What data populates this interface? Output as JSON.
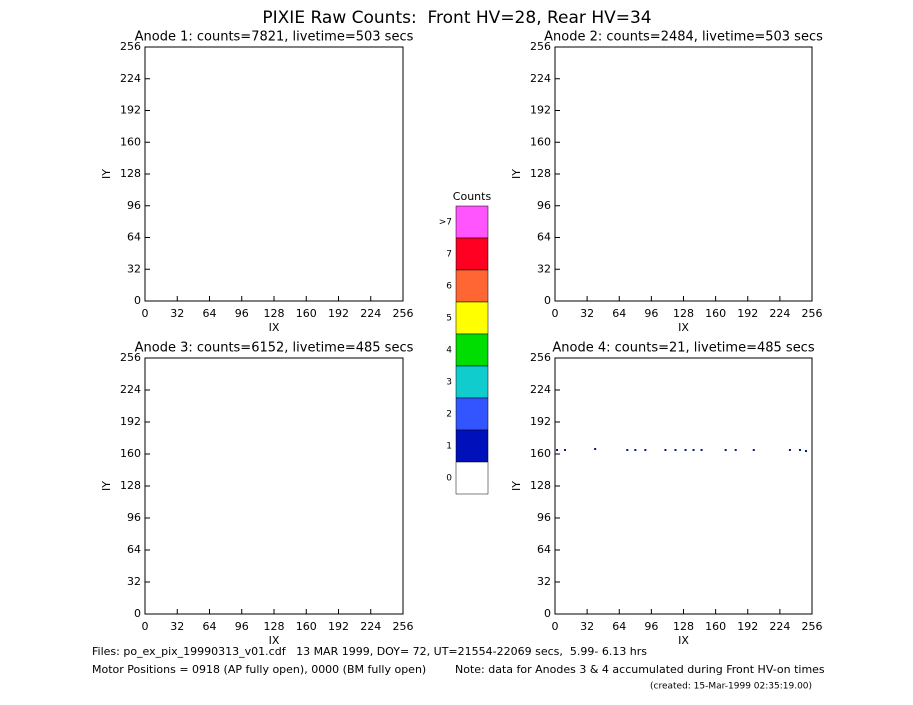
{
  "title": "PIXIE Raw Counts:  Front HV=28, Rear HV=34",
  "chart_data": [
    {
      "type": "scatter",
      "title": "Anode 1: counts=7821, livetime=503 secs",
      "x_label": "IX",
      "y_label": "IY",
      "xlim": [
        0,
        256
      ],
      "ylim": [
        0,
        256
      ],
      "xticks": [
        0,
        32,
        64,
        96,
        128,
        160,
        192,
        224,
        256
      ],
      "yticks": [
        0,
        32,
        64,
        96,
        128,
        160,
        192,
        224,
        256
      ]
    },
    {
      "type": "scatter",
      "title": "Anode 2: counts=2484, livetime=503 secs",
      "x_label": "IX",
      "y_label": "IY",
      "xlim": [
        0,
        256
      ],
      "ylim": [
        0,
        256
      ],
      "xticks": [
        0,
        32,
        64,
        96,
        128,
        160,
        192,
        224,
        256
      ],
      "yticks": [
        0,
        32,
        64,
        96,
        128,
        160,
        192,
        224,
        256
      ]
    },
    {
      "type": "scatter",
      "title": "Anode 3: counts=6152, livetime=485 secs",
      "x_label": "IX",
      "y_label": "IY",
      "xlim": [
        0,
        256
      ],
      "ylim": [
        0,
        256
      ],
      "xticks": [
        0,
        32,
        64,
        96,
        128,
        160,
        192,
        224,
        256
      ],
      "yticks": [
        0,
        32,
        64,
        96,
        128,
        160,
        192,
        224,
        256
      ]
    },
    {
      "type": "scatter",
      "title": "Anode 4: counts=21, livetime=485 secs",
      "x_label": "IX",
      "y_label": "IY",
      "xlim": [
        0,
        256
      ],
      "ylim": [
        0,
        256
      ],
      "xticks": [
        0,
        32,
        64,
        96,
        128,
        160,
        192,
        224,
        256
      ],
      "yticks": [
        0,
        32,
        64,
        96,
        128,
        160,
        192,
        224,
        256
      ],
      "color": "#001a8c",
      "x": [
        2,
        10,
        40,
        72,
        80,
        90,
        110,
        120,
        130,
        138,
        146,
        170,
        180,
        198,
        234,
        244,
        250
      ],
      "y": [
        164,
        164,
        165,
        164,
        164,
        164,
        164,
        164,
        164,
        164,
        164,
        164,
        164,
        164,
        164,
        164,
        163
      ]
    }
  ],
  "colorbar": {
    "title": "Counts",
    "levels": [
      {
        "label": ">7",
        "color": "#ff55ff"
      },
      {
        "label": "7",
        "color": "#ff0022"
      },
      {
        "label": "6",
        "color": "#ff6633"
      },
      {
        "label": "5",
        "color": "#ffff00"
      },
      {
        "label": "4",
        "color": "#00dd00"
      },
      {
        "label": "3",
        "color": "#11cccc"
      },
      {
        "label": "2",
        "color": "#3355ff"
      },
      {
        "label": "1",
        "color": "#0011bb"
      },
      {
        "label": "0",
        "color": "#ffffff"
      }
    ]
  },
  "footer": {
    "files": "Files: po_ex_pix_19990313_v01.cdf   13 MAR 1999, DOY= 72, UT=21554-22069 secs,  5.99- 6.13 hrs",
    "motor": "Motor Positions = 0918 (AP fully open), 0000 (BM fully open)",
    "note": "Note: data for Anodes 3 & 4 accumulated during Front HV-on times",
    "created": "(created: 15-Mar-1999 02:35:19.00)"
  }
}
